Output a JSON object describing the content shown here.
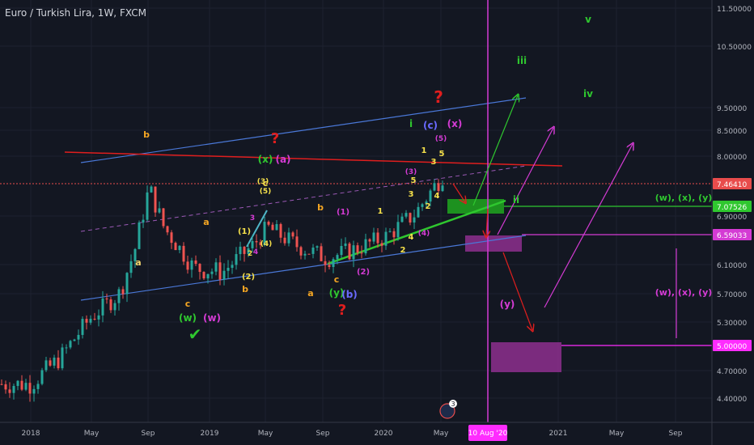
{
  "title": "Euro / Turkish Lira, 1W, FXCM",
  "chart_data": {
    "type": "candlestick",
    "x_ticks": [
      "2018",
      "May",
      "Sep",
      "2019",
      "May",
      "Sep",
      "2020",
      "May",
      "10 Aug '20",
      "2021",
      "May",
      "Sep"
    ],
    "y_ticks": [
      "11.50000",
      "10.50000",
      "9.50000",
      "8.50000",
      "8.00000",
      "6.90000",
      "6.10000",
      "5.70000",
      "5.30000",
      "4.70000",
      "4.40000"
    ],
    "price_labels": [
      {
        "text": "7.46410",
        "color": "#e84c4c"
      },
      {
        "text": "7.07526",
        "color": "#2fc72f"
      },
      {
        "text": "6.59033",
        "color": "#d43bd4"
      },
      {
        "text": "5.00000",
        "color": "#ff2cff"
      }
    ],
    "highlighted_date": "10 Aug '20",
    "event_badge": "3",
    "series": [
      {
        "date": "2018-01",
        "close": 4.55
      },
      {
        "date": "2018-03",
        "close": 4.85
      },
      {
        "date": "2018-05",
        "close": 5.35
      },
      {
        "date": "2018-07",
        "close": 5.7
      },
      {
        "date": "2018-08",
        "close": 6.3
      },
      {
        "date": "2018-09",
        "close": 7.4
      },
      {
        "date": "2018-10",
        "close": 6.7
      },
      {
        "date": "2018-12",
        "close": 6.05
      },
      {
        "date": "2019-02",
        "close": 6.0
      },
      {
        "date": "2019-04",
        "close": 6.4
      },
      {
        "date": "2019-05",
        "close": 6.7
      },
      {
        "date": "2019-07",
        "close": 6.4
      },
      {
        "date": "2019-09",
        "close": 6.2
      },
      {
        "date": "2019-11",
        "close": 6.35
      },
      {
        "date": "2020-01",
        "close": 6.55
      },
      {
        "date": "2020-03",
        "close": 6.95
      },
      {
        "date": "2020-05",
        "close": 7.7
      },
      {
        "date": "2020-06",
        "close": 7.46
      }
    ],
    "annotations": [
      {
        "text": "b",
        "color": "#f5a623"
      },
      {
        "text": "a",
        "color": "#f5a623"
      },
      {
        "text": "a",
        "color": "#f5d76e"
      },
      {
        "text": "c",
        "color": "#f5a623"
      },
      {
        "text": "(w)",
        "color": "#2fc72f"
      },
      {
        "text": "(w)",
        "color": "#d43bd4"
      },
      {
        "text": "✔",
        "color": "#2fc72f"
      },
      {
        "text": "(1)",
        "color": "#f5e04a"
      },
      {
        "text": "2",
        "color": "#f5e04a"
      },
      {
        "text": "(2)",
        "color": "#f5e04a"
      },
      {
        "text": "b",
        "color": "#f5a623"
      },
      {
        "text": "3",
        "color": "#d43bd4"
      },
      {
        "text": "4",
        "color": "#d43bd4"
      },
      {
        "text": "(3)",
        "color": "#f5e04a"
      },
      {
        "text": "(4)",
        "color": "#f5e04a"
      },
      {
        "text": "c",
        "color": "#f5e04a"
      },
      {
        "text": "(5)",
        "color": "#f5e04a"
      },
      {
        "text": "?",
        "color": "#e01e1e"
      },
      {
        "text": "(x)",
        "color": "#2fc72f"
      },
      {
        "text": "(a)",
        "color": "#d43bd4"
      },
      {
        "text": "b",
        "color": "#f5a623"
      },
      {
        "text": "(1)",
        "color": "#d43bd4"
      },
      {
        "text": "a",
        "color": "#f5a623"
      },
      {
        "text": "c",
        "color": "#f5a623"
      },
      {
        "text": "(y)",
        "color": "#2fc72f"
      },
      {
        "text": "(b)",
        "color": "#6a6aff"
      },
      {
        "text": "?",
        "color": "#e01e1e"
      },
      {
        "text": "(2)",
        "color": "#d43bd4"
      },
      {
        "text": "1",
        "color": "#f5e04a"
      },
      {
        "text": "2",
        "color": "#f5e04a"
      },
      {
        "text": "(3)",
        "color": "#d43bd4"
      },
      {
        "text": "5",
        "color": "#f5e04a"
      },
      {
        "text": "3",
        "color": "#f5e04a"
      },
      {
        "text": "4",
        "color": "#f5e04a"
      },
      {
        "text": "(4)",
        "color": "#d43bd4"
      },
      {
        "text": "2",
        "color": "#f5e04a"
      },
      {
        "text": "4",
        "color": "#f5e04a"
      },
      {
        "text": "1",
        "color": "#f5e04a"
      },
      {
        "text": "3",
        "color": "#f5e04a"
      },
      {
        "text": "5",
        "color": "#f5e04a"
      },
      {
        "text": "(5)",
        "color": "#d43bd4"
      },
      {
        "text": "i",
        "color": "#2fc72f"
      },
      {
        "text": "(c)",
        "color": "#6a6aff"
      },
      {
        "text": "(x)",
        "color": "#d43bd4"
      },
      {
        "text": "?",
        "color": "#e01e1e"
      },
      {
        "text": "ii",
        "color": "#2fc72f"
      },
      {
        "text": "iii",
        "color": "#2fc72f"
      },
      {
        "text": "iv",
        "color": "#2fc72f"
      },
      {
        "text": "v",
        "color": "#2fc72f"
      },
      {
        "text": "(y)",
        "color": "#d43bd4"
      },
      {
        "text": "(w), (x), (y)",
        "color": "#2fc72f"
      },
      {
        "text": "(w), (x), (y)",
        "color": "#d43bd4"
      }
    ]
  }
}
